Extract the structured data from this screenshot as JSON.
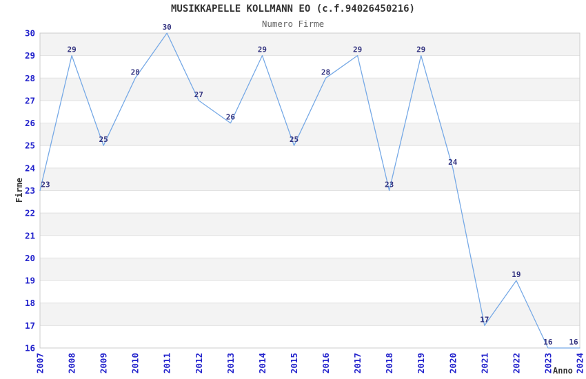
{
  "title": "MUSIKKAPELLE KOLLMANN EO (c.f.94026450216)",
  "subtitle": "Numero Firme",
  "chart_data": {
    "type": "line",
    "title": "MUSIKKAPELLE KOLLMANN EO (c.f.94026450216)",
    "subtitle": "Numero Firme",
    "xlabel": "Anno",
    "ylabel": "Firme",
    "categories": [
      "2007",
      "2008",
      "2009",
      "2010",
      "2011",
      "2012",
      "2013",
      "2014",
      "2015",
      "2016",
      "2017",
      "2018",
      "2019",
      "2020",
      "2021",
      "2022",
      "2023",
      "2024"
    ],
    "series": [
      {
        "name": "Numero Firme",
        "values": [
          23,
          29,
          25,
          28,
          30,
          27,
          26,
          29,
          25,
          28,
          29,
          23,
          29,
          24,
          17,
          19,
          16,
          16
        ]
      }
    ],
    "ylim": [
      16,
      30
    ],
    "ytick_step": 1,
    "grid": "horizontal",
    "banded_rows": true,
    "data_labels": true,
    "legend": "none",
    "x_tick_rotation": -90
  },
  "colors": {
    "line": "#76a9e6",
    "tick_label": "#2222cc",
    "data_label": "#333380",
    "band_fill": "#f3f3f3",
    "grid_line": "#e2e2e2",
    "plot_border": "#cccccc",
    "title": "#333333",
    "subtitle": "#666666",
    "axis_title": "#333333",
    "background": "#ffffff"
  }
}
